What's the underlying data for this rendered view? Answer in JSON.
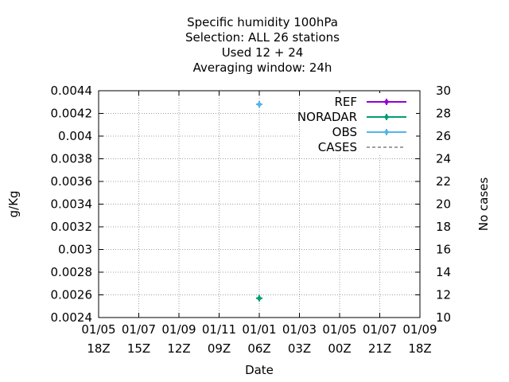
{
  "chart_data": {
    "type": "line",
    "title_lines": [
      "Specific humidity 100hPa",
      "Selection: ALL      26 stations",
      "Used  12 + 24",
      "Averaging window: 24h"
    ],
    "xlabel": "Date",
    "ylabel": "g/Kg",
    "y2label": "No cases",
    "x_ticks": [
      {
        "date": "01/05",
        "time": "18Z"
      },
      {
        "date": "01/07",
        "time": "15Z"
      },
      {
        "date": "01/09",
        "time": "12Z"
      },
      {
        "date": "01/11",
        "time": "09Z"
      },
      {
        "date": "01/01",
        "time": "06Z"
      },
      {
        "date": "01/03",
        "time": "03Z"
      },
      {
        "date": "01/05",
        "time": "00Z"
      },
      {
        "date": "01/07",
        "time": "21Z"
      },
      {
        "date": "01/09",
        "time": "18Z"
      }
    ],
    "ylim": [
      0.0024,
      0.0044
    ],
    "y_ticks": [
      "0.0024",
      "0.0026",
      "0.0028",
      "0.003",
      "0.0032",
      "0.0034",
      "0.0036",
      "0.0038",
      "0.004",
      "0.0042",
      "0.0044"
    ],
    "y2lim": [
      10,
      30
    ],
    "y2_ticks": [
      "10",
      "12",
      "14",
      "16",
      "18",
      "20",
      "22",
      "24",
      "26",
      "28",
      "30"
    ],
    "grid": true,
    "legend_position": "top-right",
    "series": [
      {
        "name": "REF",
        "color": "#9400d3",
        "style": "line-points",
        "points": []
      },
      {
        "name": "NORADAR",
        "color": "#009e73",
        "style": "line-points",
        "points": [
          {
            "x": "01/01 06Z",
            "y": 0.00257
          }
        ]
      },
      {
        "name": "OBS",
        "color": "#56b4e9",
        "style": "line-points",
        "points": [
          {
            "x": "01/01 06Z",
            "y": 0.00428
          }
        ]
      },
      {
        "name": "CASES",
        "color": "#808080",
        "style": "dashed",
        "points": []
      }
    ]
  }
}
